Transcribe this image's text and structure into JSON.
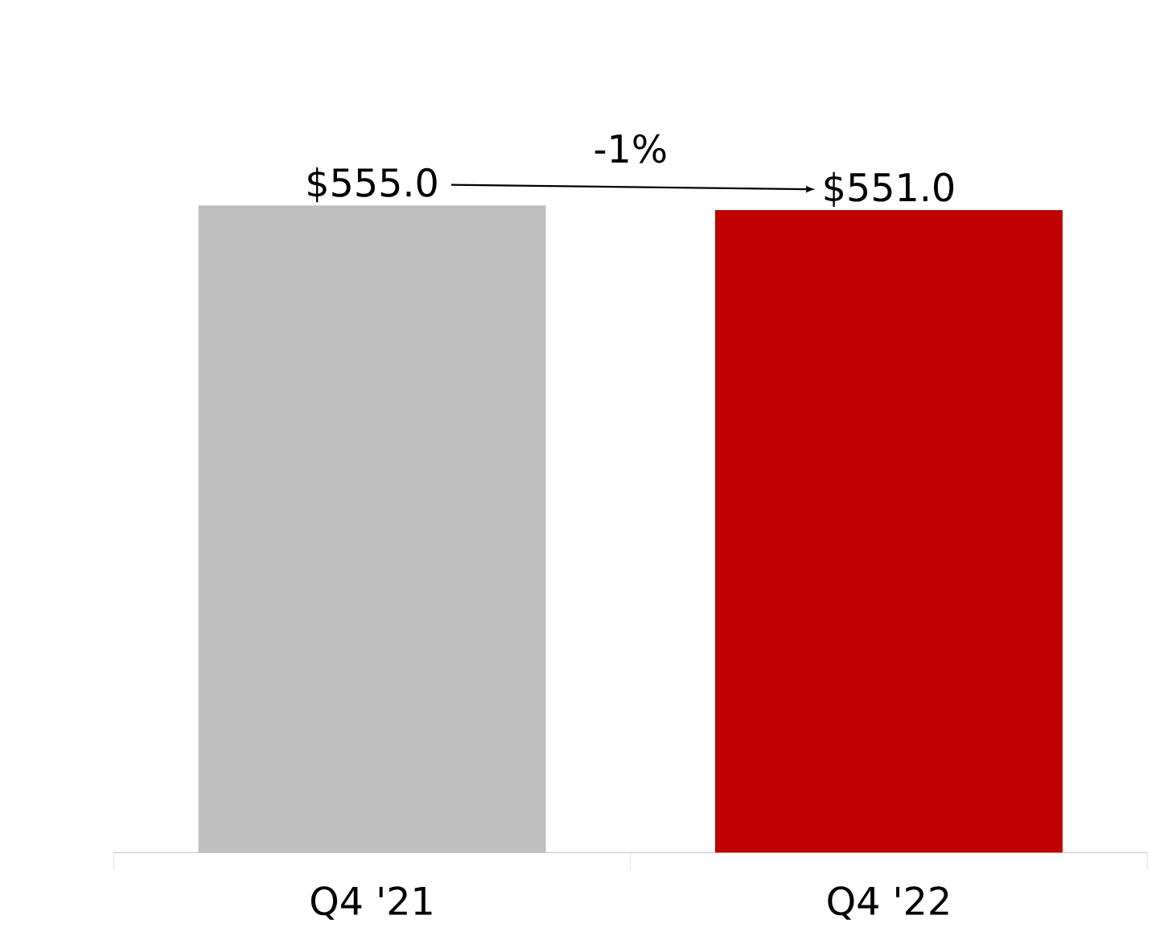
{
  "chart_data": {
    "type": "bar",
    "categories": [
      "Q4 '21",
      "Q4 '22"
    ],
    "values": [
      555.0,
      551.0
    ],
    "colors": [
      "#bfbfbf",
      "#c00000"
    ],
    "value_labels": [
      "$555.0",
      "$551.0"
    ],
    "annotations": [
      "-1%"
    ]
  }
}
